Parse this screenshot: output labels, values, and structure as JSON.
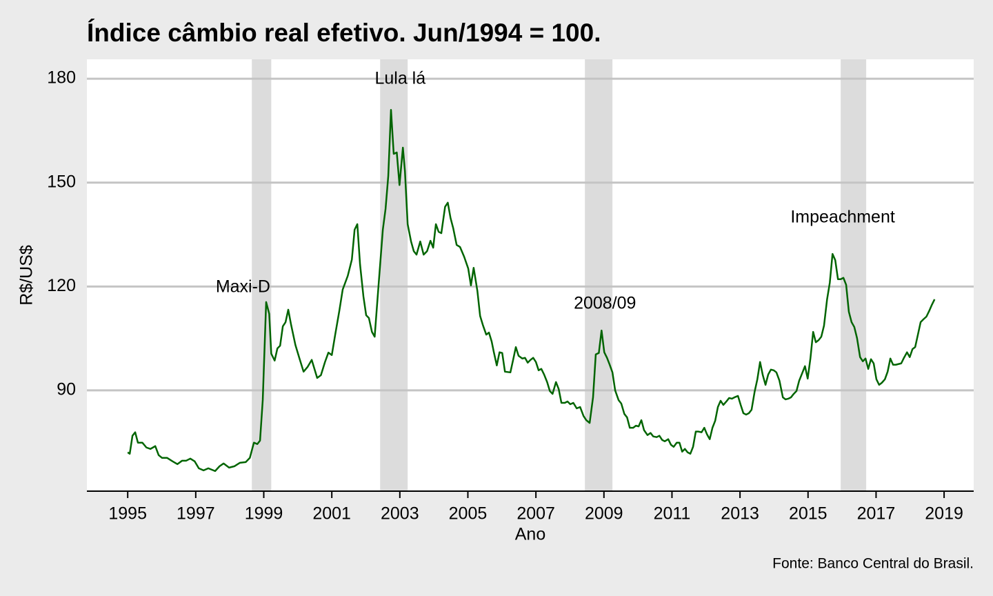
{
  "chart_data": {
    "type": "line",
    "title": "Índice câmbio real efetivo. Jun/1994 = 100.",
    "x_label": "Ano",
    "y_label": "R$/US$",
    "source": "Fonte: Banco Central do Brasil.",
    "xlim": [
      1993.8,
      2019.87
    ],
    "ylim": [
      60.9,
      185.6
    ],
    "xticks": [
      1995,
      1997,
      1999,
      2001,
      2003,
      2005,
      2007,
      2009,
      2011,
      2013,
      2015,
      2017,
      2019
    ],
    "yticks": [
      90,
      120,
      150,
      180
    ],
    "grid": true,
    "shaded_periods": [
      {
        "start": 1998.65,
        "end": 1999.22,
        "label": "Maxi-D",
        "label_x": 1998.39,
        "label_y": 119.7
      },
      {
        "start": 2002.42,
        "end": 2003.23,
        "label": "Lula lá",
        "label_x": 2003.01,
        "label_y": 179.8
      },
      {
        "start": 2008.44,
        "end": 2009.25,
        "label": "2008/09",
        "label_x": 2009.03,
        "label_y": 114.9
      },
      {
        "start": 2015.96,
        "end": 2016.71,
        "label": "Impeachment",
        "label_x": 2016.02,
        "label_y": 139.8
      }
    ],
    "series": [
      {
        "color": "#006400",
        "x": [
          1995.0,
          1995.06,
          1995.14,
          1995.22,
          1995.3,
          1995.43,
          1995.55,
          1995.67,
          1995.81,
          1995.91,
          1996.01,
          1996.16,
          1996.32,
          1996.46,
          1996.6,
          1996.72,
          1996.84,
          1996.97,
          1997.09,
          1997.23,
          1997.37,
          1997.57,
          1997.7,
          1997.82,
          1997.98,
          1998.14,
          1998.3,
          1998.47,
          1998.59,
          1998.71,
          1998.81,
          1998.89,
          1998.97,
          1999.07,
          1999.16,
          1999.22,
          1999.32,
          1999.4,
          1999.48,
          1999.56,
          1999.64,
          1999.72,
          1999.8,
          1999.93,
          2000.05,
          2000.17,
          2000.29,
          2000.41,
          2000.57,
          2000.68,
          2000.8,
          2000.9,
          2001.0,
          2001.1,
          2001.22,
          2001.32,
          2001.47,
          2001.59,
          2001.67,
          2001.75,
          2001.83,
          2001.93,
          2002.01,
          2002.09,
          2002.18,
          2002.26,
          2002.38,
          2002.5,
          2002.58,
          2002.66,
          2002.74,
          2002.82,
          2002.91,
          2002.99,
          2003.09,
          2003.15,
          2003.23,
          2003.33,
          2003.41,
          2003.49,
          2003.6,
          2003.7,
          2003.8,
          2003.9,
          2003.98,
          2004.06,
          2004.14,
          2004.22,
          2004.33,
          2004.41,
          2004.49,
          2004.57,
          2004.67,
          2004.77,
          2004.89,
          2005.01,
          2005.09,
          2005.17,
          2005.28,
          2005.36,
          2005.44,
          2005.54,
          2005.62,
          2005.7,
          2005.76,
          2005.85,
          2005.93,
          2006.01,
          2006.09,
          2006.25,
          2006.33,
          2006.41,
          2006.49,
          2006.6,
          2006.68,
          2006.76,
          2006.84,
          2006.92,
          2007.0,
          2007.08,
          2007.16,
          2007.24,
          2007.33,
          2007.41,
          2007.49,
          2007.59,
          2007.67,
          2007.75,
          2007.85,
          2007.93,
          2008.01,
          2008.1,
          2008.2,
          2008.3,
          2008.4,
          2008.48,
          2008.58,
          2008.68,
          2008.76,
          2008.85,
          2008.93,
          2009.01,
          2009.09,
          2009.17,
          2009.25,
          2009.33,
          2009.43,
          2009.51,
          2009.6,
          2009.68,
          2009.76,
          2009.86,
          2009.94,
          2010.02,
          2010.1,
          2010.18,
          2010.28,
          2010.37,
          2010.45,
          2010.55,
          2010.63,
          2010.71,
          2010.79,
          2010.89,
          2010.97,
          2011.05,
          2011.14,
          2011.22,
          2011.3,
          2011.38,
          2011.46,
          2011.54,
          2011.62,
          2011.7,
          2011.78,
          2011.87,
          2011.95,
          2012.03,
          2012.11,
          2012.19,
          2012.27,
          2012.35,
          2012.43,
          2012.51,
          2012.6,
          2012.68,
          2012.76,
          2012.84,
          2012.94,
          2013.02,
          2013.1,
          2013.18,
          2013.26,
          2013.34,
          2013.43,
          2013.51,
          2013.59,
          2013.67,
          2013.75,
          2013.83,
          2013.91,
          2013.99,
          2014.07,
          2014.16,
          2014.26,
          2014.34,
          2014.42,
          2014.5,
          2014.58,
          2014.66,
          2014.74,
          2014.83,
          2014.91,
          2014.99,
          2015.07,
          2015.15,
          2015.23,
          2015.31,
          2015.39,
          2015.47,
          2015.56,
          2015.64,
          2015.72,
          2015.8,
          2015.88,
          2015.96,
          2016.04,
          2016.12,
          2016.2,
          2016.28,
          2016.36,
          2016.44,
          2016.53,
          2016.61,
          2016.69,
          2016.77,
          2016.85,
          2016.93,
          2017.01,
          2017.09,
          2017.17,
          2017.26,
          2017.34,
          2017.42,
          2017.5,
          2017.58,
          2017.66,
          2017.74,
          2017.82,
          2017.91,
          2017.99,
          2018.07,
          2018.15,
          2018.23,
          2018.31,
          2018.39,
          2018.48,
          2018.56,
          2018.64,
          2018.72
        ],
        "values": [
          72.1,
          71.7,
          76.9,
          77.9,
          74.9,
          74.9,
          73.5,
          73.1,
          73.9,
          71.3,
          70.5,
          70.5,
          69.5,
          68.7,
          69.7,
          69.7,
          70.3,
          69.5,
          67.5,
          66.9,
          67.5,
          66.7,
          68.1,
          68.9,
          67.7,
          68.1,
          69.1,
          69.3,
          70.5,
          74.9,
          74.5,
          75.5,
          87.2,
          115.5,
          112.1,
          100.6,
          98.6,
          102.1,
          102.9,
          108.5,
          109.7,
          113.3,
          109.1,
          103.1,
          99.2,
          95.4,
          96.8,
          98.8,
          93.6,
          94.4,
          98.2,
          100.9,
          100.2,
          106.1,
          112.9,
          119.1,
          123.1,
          127.8,
          136.4,
          138.0,
          126.4,
          117.1,
          111.7,
          110.9,
          106.9,
          105.5,
          121.1,
          136.4,
          142.4,
          151.9,
          171.0,
          158.3,
          158.7,
          149.3,
          160.1,
          153.3,
          138.0,
          133.0,
          130.2,
          129.2,
          133.0,
          129.2,
          130.2,
          133.2,
          131.2,
          138.0,
          135.8,
          135.4,
          143.0,
          144.2,
          139.8,
          136.8,
          132.0,
          131.4,
          128.6,
          125.2,
          120.3,
          125.4,
          118.7,
          111.5,
          108.9,
          106.1,
          106.7,
          104.1,
          101.2,
          97.2,
          101.0,
          100.8,
          95.4,
          95.2,
          98.8,
          102.5,
          100.0,
          99.2,
          99.4,
          98.0,
          98.8,
          99.4,
          98.2,
          95.8,
          96.2,
          94.6,
          92.4,
          89.8,
          89.0,
          92.4,
          90.4,
          86.4,
          86.4,
          86.8,
          86.0,
          86.4,
          84.8,
          85.2,
          82.6,
          81.4,
          80.6,
          88.0,
          100.4,
          100.8,
          107.3,
          101.0,
          99.4,
          97.4,
          95.2,
          90.0,
          87.2,
          86.2,
          83.2,
          82.2,
          79.2,
          79.2,
          79.8,
          79.6,
          81.4,
          78.5,
          77.1,
          77.7,
          76.7,
          76.5,
          76.9,
          75.7,
          75.3,
          75.9,
          74.3,
          73.7,
          74.9,
          74.9,
          72.3,
          73.1,
          72.1,
          71.7,
          73.7,
          78.1,
          78.1,
          77.9,
          79.2,
          77.3,
          75.9,
          79.2,
          81.2,
          85.2,
          87.0,
          85.8,
          86.8,
          87.8,
          87.6,
          88.0,
          88.4,
          85.8,
          83.4,
          83.0,
          83.4,
          84.4,
          89.6,
          93.2,
          98.2,
          94.4,
          91.6,
          94.6,
          96.0,
          95.8,
          95.2,
          92.8,
          88.0,
          87.4,
          87.6,
          88.0,
          89.0,
          89.8,
          92.8,
          95.0,
          97.0,
          93.4,
          99.2,
          106.9,
          103.9,
          104.5,
          105.5,
          108.7,
          116.3,
          121.1,
          129.4,
          127.6,
          122.1,
          122.1,
          122.5,
          120.5,
          112.7,
          109.7,
          108.3,
          105.1,
          99.6,
          98.4,
          99.2,
          96.2,
          99.0,
          97.8,
          93.2,
          91.6,
          92.2,
          93.2,
          95.4,
          99.2,
          97.4,
          97.4,
          97.6,
          97.8,
          99.4,
          101.0,
          99.6,
          101.9,
          102.5,
          106.1,
          109.7,
          110.5,
          111.3,
          112.9,
          114.7,
          116.3
        ]
      }
    ]
  }
}
